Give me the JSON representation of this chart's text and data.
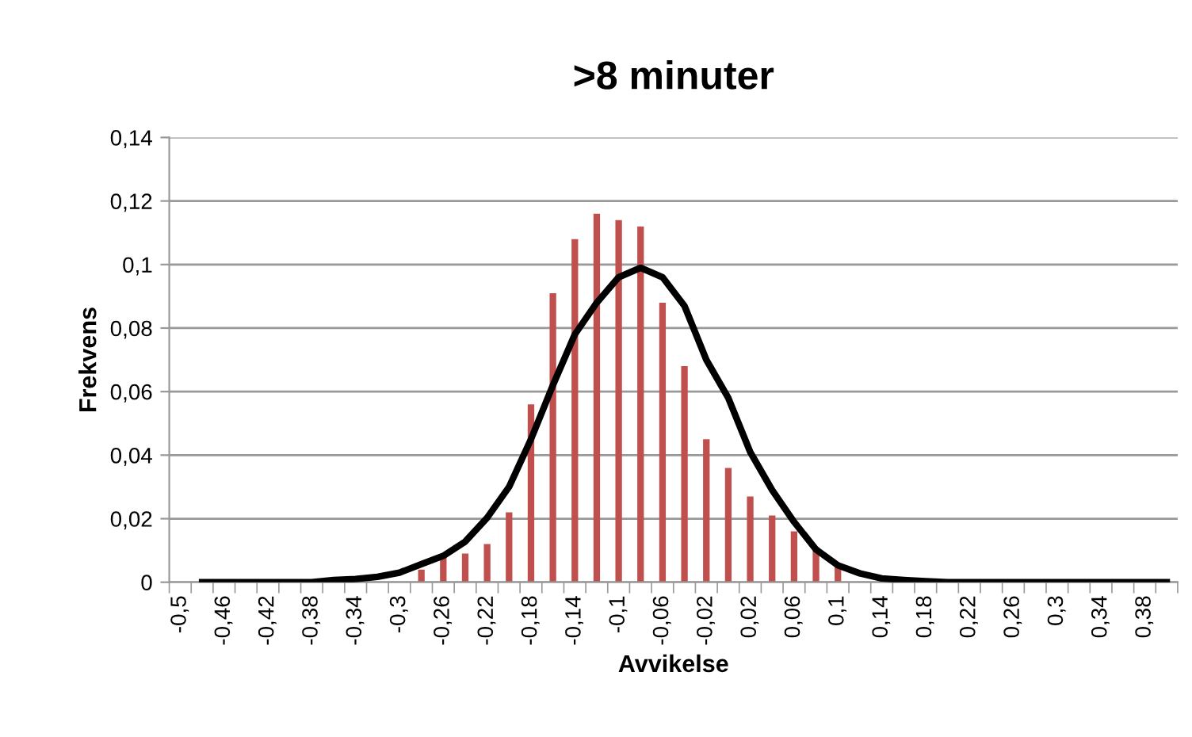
{
  "chart_data": {
    "type": "bar",
    "title": ">8 minuter",
    "xlabel": "Avvikelse",
    "ylabel": "Frekvens",
    "categories": [
      "-0,5",
      null,
      "-0,46",
      null,
      "-0,42",
      null,
      "-0,38",
      null,
      "-0,34",
      null,
      "-0,3",
      null,
      "-0,26",
      null,
      "-0,22",
      null,
      "-0,18",
      null,
      "-0,14",
      null,
      "-0,1",
      null,
      "-0,06",
      null,
      "-0,02",
      null,
      "0,02",
      null,
      "0,06",
      null,
      "0,1",
      null,
      "0,14",
      null,
      "0,18",
      null,
      "0,22",
      null,
      "0,26",
      null,
      "0,3",
      null,
      "0,34",
      null,
      "0,38",
      null
    ],
    "series": [
      {
        "color": "#c0504d",
        "values": [
          0,
          0,
          0,
          0,
          0,
          0,
          0,
          0,
          0,
          0,
          null,
          0.004,
          0.008,
          0.009,
          0.012,
          0.022,
          0.056,
          0.091,
          0.108,
          0.116,
          0.114,
          0.112,
          0.088,
          0.068,
          0.045,
          0.036,
          0.027,
          0.021,
          0.016,
          0.011,
          0.006,
          null,
          null,
          0.0005,
          0,
          0.0006,
          0,
          0,
          0,
          0,
          0,
          0,
          0,
          0,
          0,
          0
        ]
      },
      {
        "type": "line",
        "color": "#000000",
        "values": [
          null,
          0,
          0,
          0,
          0,
          0,
          0,
          0.0007,
          0.001,
          0.0017,
          0.003,
          0.0057,
          0.0083,
          0.0128,
          0.0203,
          0.03,
          0.045,
          0.062,
          0.078,
          0.088,
          0.096,
          0.099,
          0.096,
          0.087,
          0.07,
          0.058,
          0.041,
          0.029,
          0.019,
          0.0103,
          0.0053,
          0.0028,
          0.0012,
          0.0007,
          0.0003,
          0,
          0,
          0,
          0,
          0,
          0,
          0,
          0,
          0,
          0,
          0
        ]
      }
    ],
    "ylim": [
      0,
      0.14
    ],
    "yticks": [
      0,
      {
        "value": 0.02,
        "label": "0,02"
      },
      {
        "value": 0.04,
        "label": "0,04"
      },
      {
        "value": 0.06,
        "label": "0,06"
      },
      {
        "value": 0.08,
        "label": "0,08"
      },
      {
        "value": 0.1,
        "label": "0,1"
      },
      {
        "value": 0.12,
        "label": "0,12"
      },
      {
        "value": 0.14,
        "label": "0,14"
      }
    ],
    "grid": "y",
    "legend": false,
    "marker": "none",
    "line_style": "solid"
  }
}
